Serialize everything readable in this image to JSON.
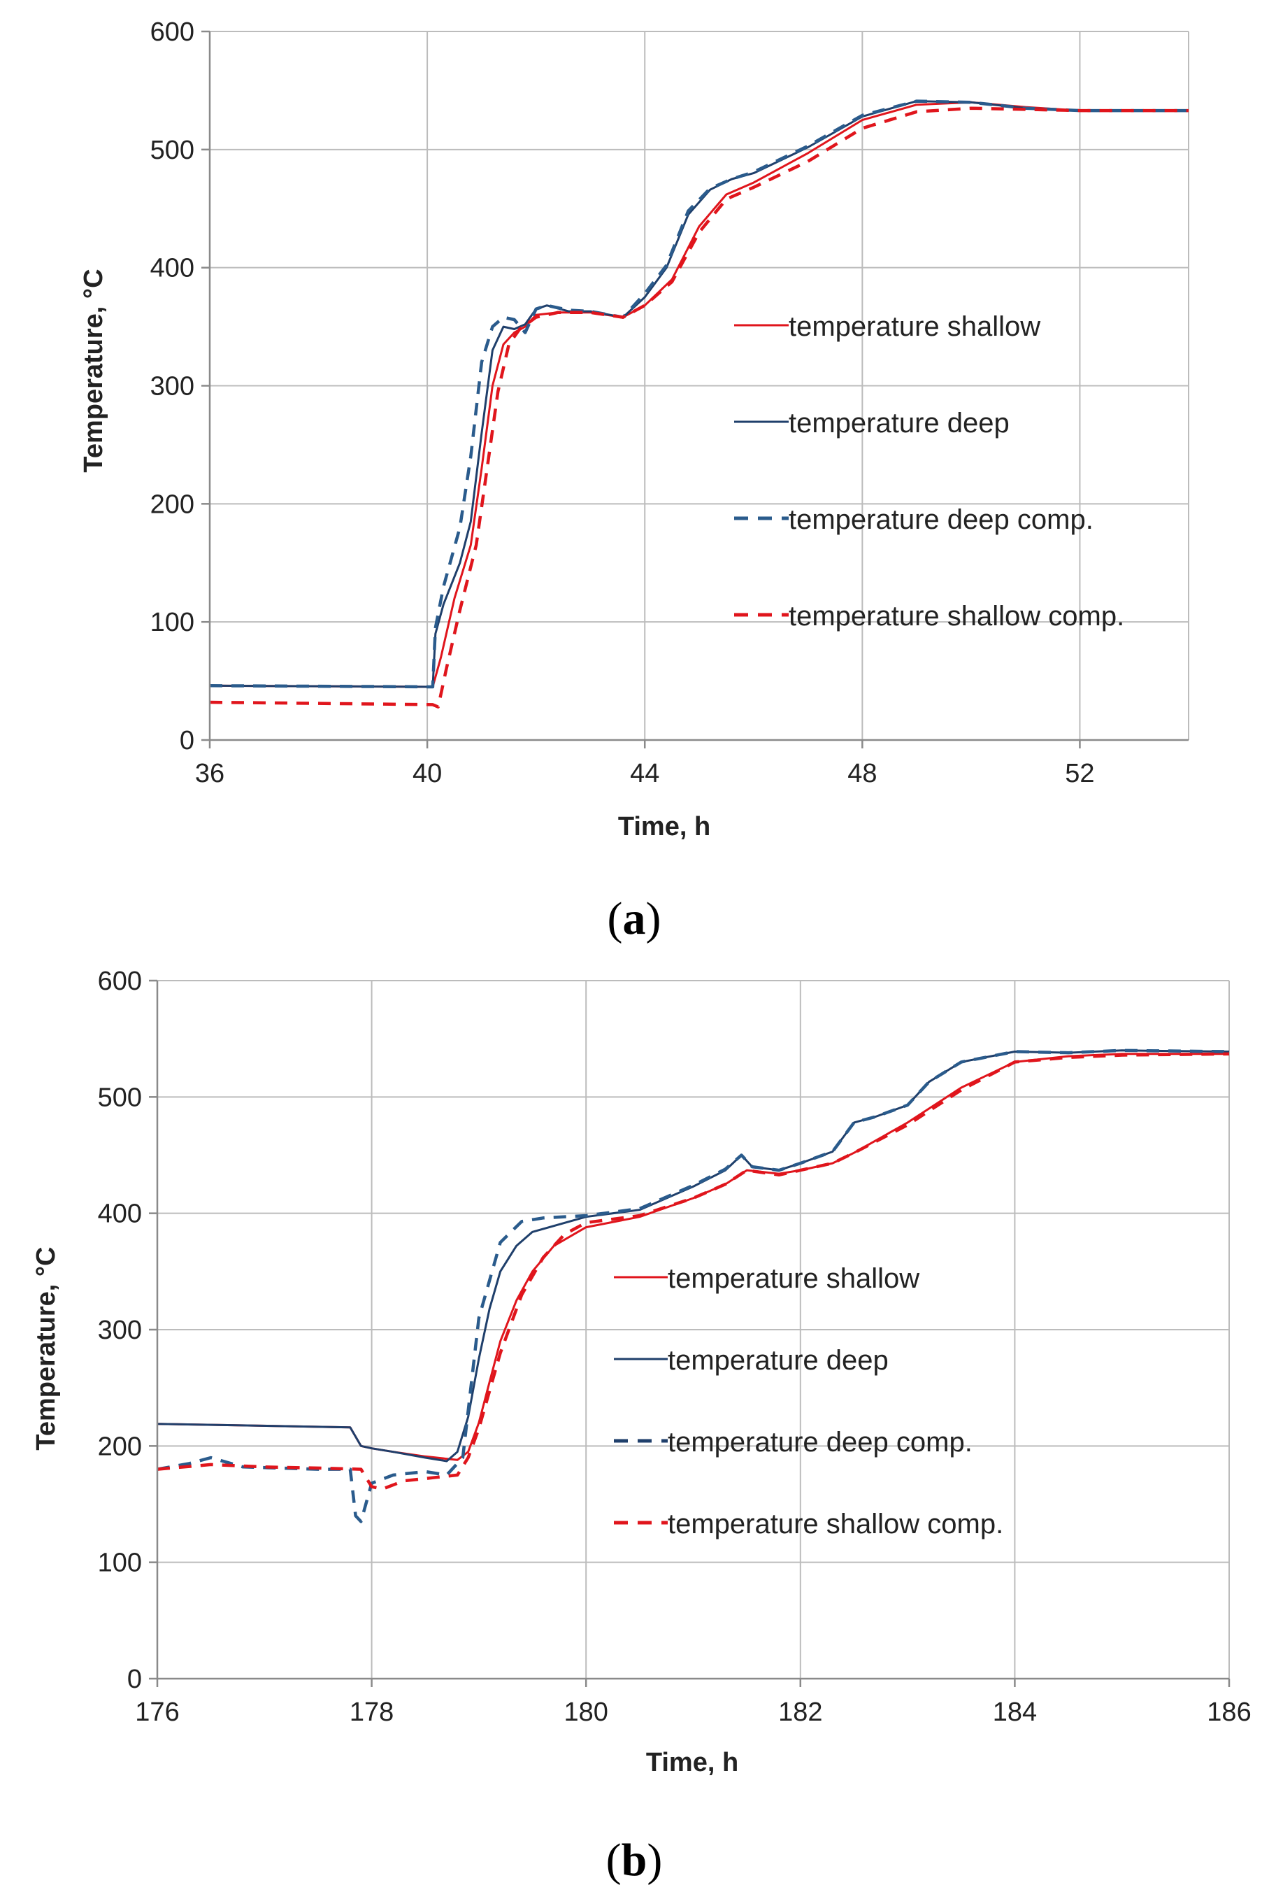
{
  "colors": {
    "shallow": "#e0151c",
    "deep": "#1f3f6b",
    "deep_comp": "#2a5b8c",
    "grid": "#bcbcbc",
    "axis": "#8a8a8a"
  },
  "chart_data": [
    {
      "type": "line",
      "panel_label_open": "(",
      "panel_label_letter": "a",
      "panel_label_close": ")",
      "xlabel": "Time, h",
      "ylabel": "Temperature, °C",
      "xlim": [
        36,
        54
      ],
      "ylim": [
        0,
        600
      ],
      "xticks": [
        36,
        40,
        44,
        48,
        52
      ],
      "yticks": [
        0,
        100,
        200,
        300,
        400,
        500,
        600
      ],
      "grid": true,
      "legend_position": "right",
      "series": [
        {
          "name": "temperature shallow",
          "style": "solid",
          "color_key": "shallow",
          "x": [
            36,
            40.1,
            40.25,
            40.5,
            40.8,
            41.0,
            41.2,
            41.4,
            41.6,
            41.8,
            42.0,
            42.4,
            43.0,
            43.6,
            44.0,
            44.5,
            45.0,
            45.5,
            46.0,
            47.0,
            48.0,
            49.0,
            50.0,
            51.0,
            52.0,
            53.0,
            54.0
          ],
          "y": [
            46,
            45,
            70,
            120,
            165,
            230,
            300,
            335,
            345,
            350,
            360,
            362,
            362,
            358,
            368,
            390,
            435,
            462,
            472,
            497,
            525,
            538,
            540,
            536,
            533,
            533,
            533
          ]
        },
        {
          "name": "temperature deep",
          "style": "solid",
          "color_key": "deep",
          "x": [
            36,
            40.1,
            40.15,
            40.3,
            40.6,
            40.8,
            41.0,
            41.2,
            41.4,
            41.6,
            41.8,
            42.0,
            42.2,
            42.6,
            43.0,
            43.6,
            44.0,
            44.4,
            44.8,
            45.2,
            45.6,
            46.0,
            47.0,
            48.0,
            49.0,
            50.0,
            51.0,
            52.0,
            53.0,
            54.0
          ],
          "y": [
            46,
            45,
            90,
            115,
            150,
            185,
            260,
            330,
            350,
            348,
            352,
            365,
            368,
            363,
            363,
            358,
            375,
            400,
            445,
            466,
            475,
            480,
            502,
            528,
            541,
            540,
            535,
            533,
            533,
            533
          ]
        },
        {
          "name": "temperature deep comp.",
          "style": "dashed",
          "color_key": "deep_comp",
          "x": [
            36,
            40.1,
            40.15,
            40.3,
            40.6,
            40.8,
            41.0,
            41.2,
            41.4,
            41.6,
            41.8,
            42.0,
            42.2,
            42.6,
            43.0,
            43.6,
            44.0,
            44.4,
            44.8,
            45.2,
            45.6,
            46.0,
            47.0,
            48.0,
            49.0,
            50.0,
            51.0,
            52.0,
            53.0,
            54.0
          ],
          "y": [
            46,
            45,
            95,
            130,
            180,
            240,
            320,
            350,
            358,
            356,
            345,
            365,
            368,
            364,
            363,
            358,
            378,
            402,
            448,
            467,
            475,
            481,
            503,
            529,
            541,
            540,
            535,
            533,
            533,
            533
          ]
        },
        {
          "name": "temperature shallow comp.",
          "style": "dashed",
          "color_key": "shallow",
          "x": [
            36,
            40.1,
            40.2,
            40.35,
            40.6,
            40.9,
            41.1,
            41.3,
            41.5,
            41.7,
            42.0,
            42.4,
            43.0,
            43.6,
            44.0,
            44.5,
            45.0,
            45.5,
            46.0,
            47.0,
            48.0,
            49.0,
            50.0,
            51.0,
            52.0,
            53.0,
            54.0
          ],
          "y": [
            32,
            30,
            28,
            60,
            110,
            165,
            230,
            295,
            335,
            348,
            358,
            362,
            362,
            358,
            368,
            388,
            430,
            458,
            468,
            490,
            518,
            532,
            535,
            534,
            533,
            533,
            533
          ]
        }
      ]
    },
    {
      "type": "line",
      "panel_label_open": "(",
      "panel_label_letter": "b",
      "panel_label_close": ")",
      "xlabel": "Time, h",
      "ylabel": "Temperature, °C",
      "xlim": [
        176,
        186
      ],
      "ylim": [
        0,
        600
      ],
      "xticks": [
        176,
        178,
        180,
        182,
        184,
        186
      ],
      "yticks": [
        0,
        100,
        200,
        300,
        400,
        500,
        600
      ],
      "grid": true,
      "legend_position": "right",
      "series": [
        {
          "name": "temperature shallow",
          "style": "solid",
          "color_key": "shallow",
          "x": [
            176,
            177.8,
            177.9,
            178.0,
            178.2,
            178.5,
            178.8,
            178.9,
            179.0,
            179.1,
            179.2,
            179.35,
            179.5,
            179.7,
            180.0,
            180.5,
            181.0,
            181.3,
            181.5,
            181.8,
            182.0,
            182.3,
            182.5,
            183.0,
            183.5,
            184.0,
            184.5,
            185.0,
            186.0
          ],
          "y": [
            219,
            216,
            200,
            198,
            195,
            191,
            188,
            195,
            220,
            255,
            290,
            325,
            350,
            372,
            388,
            397,
            413,
            425,
            437,
            434,
            437,
            443,
            452,
            478,
            508,
            530,
            535,
            537,
            537
          ]
        },
        {
          "name": "temperature deep",
          "style": "solid",
          "color_key": "deep",
          "x": [
            176,
            177.8,
            177.9,
            178.0,
            178.2,
            178.5,
            178.7,
            178.8,
            178.9,
            179.0,
            179.1,
            179.2,
            179.35,
            179.5,
            180.0,
            180.5,
            181.0,
            181.3,
            181.45,
            181.55,
            181.8,
            182.0,
            182.3,
            182.5,
            182.7,
            183.0,
            183.2,
            183.5,
            184.0,
            184.5,
            185.0,
            186.0
          ],
          "y": [
            219,
            216,
            200,
            198,
            195,
            190,
            187,
            195,
            225,
            275,
            318,
            350,
            372,
            384,
            397,
            403,
            423,
            437,
            450,
            440,
            437,
            443,
            453,
            478,
            483,
            493,
            513,
            530,
            539,
            538,
            540,
            539
          ]
        },
        {
          "name": "temperature deep comp.",
          "style": "dashed",
          "color_key": "deep_comp",
          "x": [
            176,
            176.3,
            176.5,
            176.8,
            177.5,
            177.8,
            177.85,
            177.9,
            178.0,
            178.2,
            178.5,
            178.7,
            178.85,
            179.0,
            179.2,
            179.4,
            179.6,
            180.0,
            180.5,
            181.0,
            181.3,
            181.45,
            181.55,
            181.8,
            182.0,
            182.3,
            182.5,
            182.7,
            183.0,
            183.2,
            183.5,
            184.0,
            184.5,
            185.0,
            186.0
          ],
          "y": [
            180,
            185,
            190,
            182,
            180,
            180,
            140,
            135,
            168,
            175,
            178,
            175,
            190,
            310,
            375,
            393,
            396,
            398,
            404,
            424,
            438,
            450,
            440,
            437,
            443,
            453,
            478,
            483,
            493,
            513,
            530,
            539,
            538,
            540,
            539
          ]
        },
        {
          "name": "temperature shallow comp.",
          "style": "dashed",
          "color_key": "shallow",
          "x": [
            176,
            176.5,
            177.0,
            177.5,
            177.9,
            178.0,
            178.1,
            178.3,
            178.6,
            178.8,
            178.9,
            179.0,
            179.2,
            179.4,
            179.6,
            179.8,
            180.0,
            180.5,
            181.0,
            181.3,
            181.5,
            181.8,
            182.0,
            182.3,
            182.5,
            183.0,
            183.5,
            184.0,
            184.5,
            185.0,
            186.0
          ],
          "y": [
            180,
            184,
            182,
            181,
            180,
            165,
            163,
            170,
            173,
            175,
            190,
            215,
            280,
            330,
            362,
            382,
            392,
            398,
            413,
            425,
            437,
            433,
            437,
            443,
            452,
            476,
            506,
            530,
            534,
            536,
            537
          ]
        }
      ]
    }
  ]
}
